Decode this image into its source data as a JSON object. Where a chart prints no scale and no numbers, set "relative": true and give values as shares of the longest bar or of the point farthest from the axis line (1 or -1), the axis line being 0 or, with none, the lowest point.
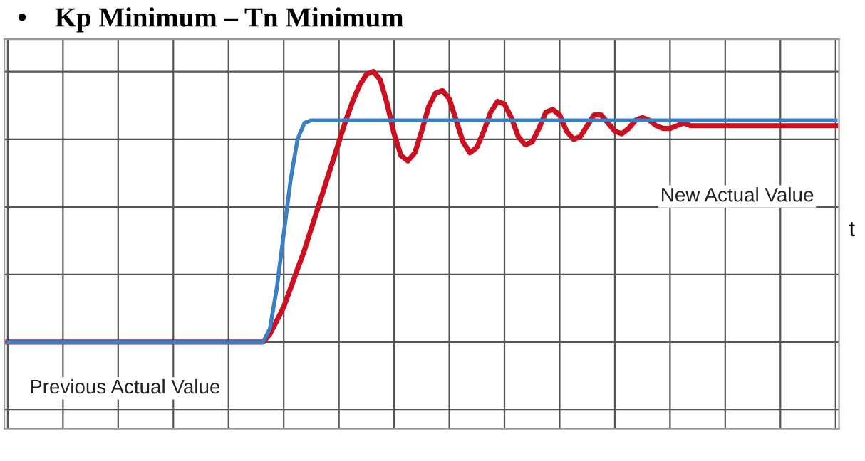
{
  "chart_data": {
    "type": "line",
    "title": "•    Kp Minimum – Tn Minimum",
    "xlabel": "t",
    "relative": true,
    "grid": true,
    "legend": false,
    "marker": "none",
    "line_style": "solid",
    "categories": [
      null,
      null,
      null,
      null,
      null,
      null,
      null,
      null,
      null,
      null,
      null,
      null,
      null,
      null,
      null,
      null,
      null,
      null,
      null,
      null,
      null,
      null,
      null,
      null,
      null,
      null,
      null,
      null,
      null,
      null,
      null,
      null,
      null,
      null,
      null,
      null,
      null,
      null,
      null,
      null,
      null,
      null,
      null,
      null,
      null,
      null,
      null,
      null,
      null,
      null,
      null,
      null,
      null,
      null,
      null,
      null,
      null,
      null,
      null,
      null,
      null,
      null,
      null,
      null,
      null,
      null,
      null,
      null,
      null,
      null,
      null,
      null,
      null,
      null,
      null,
      null,
      null,
      null,
      null,
      null,
      null,
      null,
      null,
      null,
      null,
      null,
      null,
      null,
      null,
      null,
      null,
      null,
      null,
      null,
      null,
      null,
      null,
      null,
      null,
      null,
      null,
      null,
      null,
      null,
      null,
      null,
      null,
      null,
      null,
      null,
      null,
      null,
      null,
      null,
      null,
      null,
      null,
      null,
      null,
      null,
      null
    ],
    "series": [
      {
        "color": "#3a7fc4",
        "values": [
          0,
          0,
          0,
          0,
          0,
          0,
          0,
          0,
          0,
          0,
          0,
          0,
          0,
          0,
          0,
          0,
          0,
          0,
          0,
          0,
          0,
          0,
          0,
          0,
          0,
          0,
          0,
          0,
          0,
          0,
          0,
          0,
          0,
          0,
          0,
          0,
          0,
          0,
          0.05,
          0.2,
          0.4,
          0.6,
          0.75,
          0.81,
          0.82,
          0.82,
          0.82,
          0.82,
          0.82,
          0.82,
          0.82,
          0.82,
          0.82,
          0.82,
          0.82,
          0.82,
          0.82,
          0.82,
          0.82,
          0.82,
          0.82,
          0.82,
          0.82,
          0.82,
          0.82,
          0.82,
          0.82,
          0.82,
          0.82,
          0.82,
          0.82,
          0.82,
          0.82,
          0.82,
          0.82,
          0.82,
          0.82,
          0.82,
          0.82,
          0.82,
          0.82,
          0.82,
          0.82,
          0.82,
          0.82,
          0.82,
          0.82,
          0.82,
          0.82,
          0.82,
          0.82,
          0.82,
          0.82,
          0.82,
          0.82,
          0.82,
          0.82,
          0.82,
          0.82,
          0.82,
          0.82,
          0.82,
          0.82,
          0.82,
          0.82,
          0.82,
          0.82,
          0.82,
          0.82,
          0.82,
          0.82,
          0.82,
          0.82,
          0.82,
          0.82,
          0.82,
          0.82,
          0.82,
          0.82,
          0.82,
          0.82
        ]
      },
      {
        "color": "#cc1020",
        "values": [
          0,
          0,
          0,
          0,
          0,
          0,
          0,
          0,
          0,
          0,
          0,
          0,
          0,
          0,
          0,
          0,
          0,
          0,
          0,
          0,
          0,
          0,
          0,
          0,
          0,
          0,
          0,
          0,
          0,
          0,
          0,
          0,
          0,
          0,
          0,
          0,
          0,
          0,
          0.03,
          0.08,
          0.13,
          0.2,
          0.27,
          0.34,
          0.42,
          0.5,
          0.58,
          0.66,
          0.74,
          0.82,
          0.89,
          0.95,
          0.99,
          1,
          0.97,
          0.88,
          0.77,
          0.69,
          0.67,
          0.7,
          0.78,
          0.87,
          0.92,
          0.93,
          0.9,
          0.82,
          0.74,
          0.7,
          0.72,
          0.78,
          0.85,
          0.89,
          0.88,
          0.83,
          0.76,
          0.73,
          0.74,
          0.79,
          0.85,
          0.86,
          0.84,
          0.78,
          0.75,
          0.76,
          0.8,
          0.84,
          0.84,
          0.81,
          0.78,
          0.77,
          0.79,
          0.82,
          0.83,
          0.82,
          0.8,
          0.79,
          0.79,
          0.8,
          0.81,
          0.8,
          0.8,
          0.8,
          0.8,
          0.8,
          0.8,
          0.8,
          0.8,
          0.8,
          0.8,
          0.8,
          0.8,
          0.8,
          0.8,
          0.8,
          0.8,
          0.8,
          0.8,
          0.8,
          0.8,
          0.8,
          0.8
        ]
      }
    ],
    "annotations": [
      "New Actual Value",
      "Previous Actual Value"
    ]
  }
}
